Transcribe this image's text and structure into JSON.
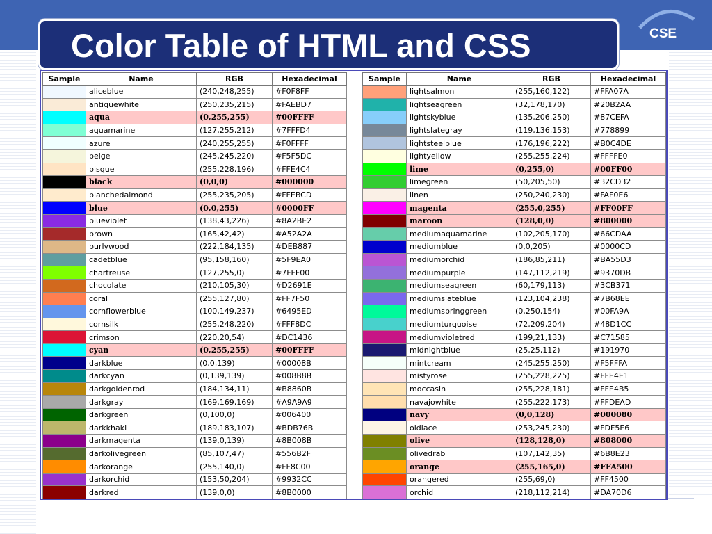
{
  "slide": {
    "title": "Color Table of HTML and CSS",
    "logo_text": "CSE",
    "colors": {
      "band": "#3e64b3",
      "title_box": "#1c2f78",
      "highlight_row": "#ffc8c8"
    }
  },
  "table": {
    "headers": [
      "Sample",
      "Name",
      "RGB",
      "Hexadecimal"
    ],
    "left_rows": [
      {
        "name": "aliceblue",
        "rgb": "(240,248,255)",
        "hex": "#F0F8FF",
        "color": "#F0F8FF",
        "hl": false
      },
      {
        "name": "antiquewhite",
        "rgb": "(250,235,215)",
        "hex": "#FAEBD7",
        "color": "#FAEBD7",
        "hl": false
      },
      {
        "name": "aqua",
        "rgb": "(0,255,255)",
        "hex": "#00FFFF",
        "color": "#00FFFF",
        "hl": true
      },
      {
        "name": "aquamarine",
        "rgb": "(127,255,212)",
        "hex": "#7FFFD4",
        "color": "#7FFFD4",
        "hl": false
      },
      {
        "name": "azure",
        "rgb": "(240,255,255)",
        "hex": "#F0FFFF",
        "color": "#F0FFFF",
        "hl": false
      },
      {
        "name": "beige",
        "rgb": "(245,245,220)",
        "hex": "#F5F5DC",
        "color": "#F5F5DC",
        "hl": false
      },
      {
        "name": "bisque",
        "rgb": "(255,228,196)",
        "hex": "#FFE4C4",
        "color": "#FFE4C4",
        "hl": false
      },
      {
        "name": "black",
        "rgb": "(0,0,0)",
        "hex": "#000000",
        "color": "#000000",
        "hl": true
      },
      {
        "name": "blanchedalmond",
        "rgb": "(255,235,205)",
        "hex": "#FFEBCD",
        "color": "#FFEBCD",
        "hl": false
      },
      {
        "name": "blue",
        "rgb": "(0,0,255)",
        "hex": "#0000FF",
        "color": "#0000FF",
        "hl": true
      },
      {
        "name": "blueviolet",
        "rgb": "(138,43,226)",
        "hex": "#8A2BE2",
        "color": "#8A2BE2",
        "hl": false
      },
      {
        "name": "brown",
        "rgb": "(165,42,42)",
        "hex": "#A52A2A",
        "color": "#A52A2A",
        "hl": false
      },
      {
        "name": "burlywood",
        "rgb": "(222,184,135)",
        "hex": "#DEB887",
        "color": "#DEB887",
        "hl": false
      },
      {
        "name": "cadetblue",
        "rgb": "(95,158,160)",
        "hex": "#5F9EA0",
        "color": "#5F9EA0",
        "hl": false
      },
      {
        "name": "chartreuse",
        "rgb": "(127,255,0)",
        "hex": "#7FFF00",
        "color": "#7FFF00",
        "hl": false
      },
      {
        "name": "chocolate",
        "rgb": "(210,105,30)",
        "hex": "#D2691E",
        "color": "#D2691E",
        "hl": false
      },
      {
        "name": "coral",
        "rgb": "(255,127,80)",
        "hex": "#FF7F50",
        "color": "#FF7F50",
        "hl": false
      },
      {
        "name": "cornflowerblue",
        "rgb": "(100,149,237)",
        "hex": "#6495ED",
        "color": "#6495ED",
        "hl": false
      },
      {
        "name": "cornsilk",
        "rgb": "(255,248,220)",
        "hex": "#FFF8DC",
        "color": "#FFF8DC",
        "hl": false
      },
      {
        "name": "crimson",
        "rgb": "(220,20,54)",
        "hex": "#DC1436",
        "color": "#DC1436",
        "hl": false
      },
      {
        "name": "cyan",
        "rgb": "(0,255,255)",
        "hex": "#00FFFF",
        "color": "#00FFFF",
        "hl": true
      },
      {
        "name": "darkblue",
        "rgb": "(0,0,139)",
        "hex": "#00008B",
        "color": "#00008B",
        "hl": false
      },
      {
        "name": "darkcyan",
        "rgb": "(0,139,139)",
        "hex": "#008B8B",
        "color": "#008B8B",
        "hl": false
      },
      {
        "name": "darkgoldenrod",
        "rgb": "(184,134,11)",
        "hex": "#B8860B",
        "color": "#B8860B",
        "hl": false
      },
      {
        "name": "darkgray",
        "rgb": "(169,169,169)",
        "hex": "#A9A9A9",
        "color": "#A9A9A9",
        "hl": false
      },
      {
        "name": "darkgreen",
        "rgb": "(0,100,0)",
        "hex": "#006400",
        "color": "#006400",
        "hl": false
      },
      {
        "name": "darkkhaki",
        "rgb": "(189,183,107)",
        "hex": "#BDB76B",
        "color": "#BDB76B",
        "hl": false
      },
      {
        "name": "darkmagenta",
        "rgb": "(139,0,139)",
        "hex": "#8B008B",
        "color": "#8B008B",
        "hl": false
      },
      {
        "name": "darkolivegreen",
        "rgb": "(85,107,47)",
        "hex": "#556B2F",
        "color": "#556B2F",
        "hl": false
      },
      {
        "name": "darkorange",
        "rgb": "(255,140,0)",
        "hex": "#FF8C00",
        "color": "#FF8C00",
        "hl": false
      },
      {
        "name": "darkorchid",
        "rgb": "(153,50,204)",
        "hex": "#9932CC",
        "color": "#9932CC",
        "hl": false
      },
      {
        "name": "darkred",
        "rgb": "(139,0,0)",
        "hex": "#8B0000",
        "color": "#8B0000",
        "hl": false
      }
    ],
    "right_rows": [
      {
        "name": "lightsalmon",
        "rgb": "(255,160,122)",
        "hex": "#FFA07A",
        "color": "#FFA07A",
        "hl": false
      },
      {
        "name": "lightseagreen",
        "rgb": "(32,178,170)",
        "hex": "#20B2AA",
        "color": "#20B2AA",
        "hl": false
      },
      {
        "name": "lightskyblue",
        "rgb": "(135,206,250)",
        "hex": "#87CEFA",
        "color": "#87CEFA",
        "hl": false
      },
      {
        "name": "lightslategray",
        "rgb": "(119,136,153)",
        "hex": "#778899",
        "color": "#778899",
        "hl": false
      },
      {
        "name": "lightsteelblue",
        "rgb": "(176,196,222)",
        "hex": "#B0C4DE",
        "color": "#B0C4DE",
        "hl": false
      },
      {
        "name": "lightyellow",
        "rgb": "(255,255,224)",
        "hex": "#FFFFE0",
        "color": "#FFFFE0",
        "hl": false
      },
      {
        "name": "lime",
        "rgb": "(0,255,0)",
        "hex": "#00FF00",
        "color": "#00FF00",
        "hl": true
      },
      {
        "name": "limegreen",
        "rgb": "(50,205,50)",
        "hex": "#32CD32",
        "color": "#32CD32",
        "hl": false
      },
      {
        "name": "linen",
        "rgb": "(250,240,230)",
        "hex": "#FAF0E6",
        "color": "#FAF0E6",
        "hl": false
      },
      {
        "name": "magenta",
        "rgb": "(255,0,255)",
        "hex": "#FF00FF",
        "color": "#FF00FF",
        "hl": true
      },
      {
        "name": "maroon",
        "rgb": "(128,0,0)",
        "hex": "#800000",
        "color": "#800000",
        "hl": true
      },
      {
        "name": "mediumaquamarine",
        "rgb": "(102,205,170)",
        "hex": "#66CDAA",
        "color": "#66CDAA",
        "hl": false
      },
      {
        "name": "mediumblue",
        "rgb": "(0,0,205)",
        "hex": "#0000CD",
        "color": "#0000CD",
        "hl": false
      },
      {
        "name": "mediumorchid",
        "rgb": "(186,85,211)",
        "hex": "#BA55D3",
        "color": "#BA55D3",
        "hl": false
      },
      {
        "name": "mediumpurple",
        "rgb": "(147,112,219)",
        "hex": "#9370DB",
        "color": "#9370DB",
        "hl": false
      },
      {
        "name": "mediumseagreen",
        "rgb": "(60,179,113)",
        "hex": "#3CB371",
        "color": "#3CB371",
        "hl": false
      },
      {
        "name": "mediumslateblue",
        "rgb": "(123,104,238)",
        "hex": "#7B68EE",
        "color": "#7B68EE",
        "hl": false
      },
      {
        "name": "mediumspringgreen",
        "rgb": "(0,250,154)",
        "hex": "#00FA9A",
        "color": "#00FA9A",
        "hl": false
      },
      {
        "name": "mediumturquoise",
        "rgb": "(72,209,204)",
        "hex": "#48D1CC",
        "color": "#48D1CC",
        "hl": false
      },
      {
        "name": "mediumvioletred",
        "rgb": "(199,21,133)",
        "hex": "#C71585",
        "color": "#C71585",
        "hl": false
      },
      {
        "name": "midnightblue",
        "rgb": "(25,25,112)",
        "hex": "#191970",
        "color": "#191970",
        "hl": false
      },
      {
        "name": "mintcream",
        "rgb": "(245,255,250)",
        "hex": "#F5FFFA",
        "color": "#F5FFFA",
        "hl": false
      },
      {
        "name": "mistyrose",
        "rgb": "(255,228,225)",
        "hex": "#FFE4E1",
        "color": "#FFE4E1",
        "hl": false
      },
      {
        "name": "moccasin",
        "rgb": "(255,228,181)",
        "hex": "#FFE4B5",
        "color": "#FFE4B5",
        "hl": false
      },
      {
        "name": "navajowhite",
        "rgb": "(255,222,173)",
        "hex": "#FFDEAD",
        "color": "#FFDEAD",
        "hl": false
      },
      {
        "name": "navy",
        "rgb": "(0,0,128)",
        "hex": "#000080",
        "color": "#000080",
        "hl": true
      },
      {
        "name": "oldlace",
        "rgb": "(253,245,230)",
        "hex": "#FDF5E6",
        "color": "#FDF5E6",
        "hl": false
      },
      {
        "name": "olive",
        "rgb": "(128,128,0)",
        "hex": "#808000",
        "color": "#808000",
        "hl": true
      },
      {
        "name": "olivedrab",
        "rgb": "(107,142,35)",
        "hex": "#6B8E23",
        "color": "#6B8E23",
        "hl": false
      },
      {
        "name": "orange",
        "rgb": "(255,165,0)",
        "hex": "#FFA500",
        "color": "#FFA500",
        "hl": true
      },
      {
        "name": "orangered",
        "rgb": "(255,69,0)",
        "hex": "#FF4500",
        "color": "#FF4500",
        "hl": false
      },
      {
        "name": "orchid",
        "rgb": "(218,112,214)",
        "hex": "#DA70D6",
        "color": "#DA70D6",
        "hl": false
      }
    ]
  }
}
